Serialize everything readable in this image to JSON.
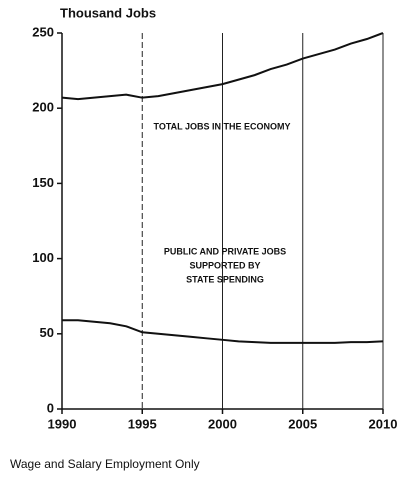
{
  "chart_data": {
    "type": "line",
    "y_label": "Thousand Jobs",
    "footnote": "Wage and Salary Employment Only",
    "x": [
      1990,
      1991,
      1992,
      1993,
      1994,
      1995,
      1996,
      1997,
      1998,
      1999,
      2000,
      2001,
      2002,
      2003,
      2004,
      2005,
      2006,
      2007,
      2008,
      2009,
      2010
    ],
    "series": [
      {
        "color": "#111111",
        "values": [
          207,
          206,
          207,
          208,
          209,
          207,
          208,
          210,
          212,
          214,
          216,
          219,
          222,
          226,
          229,
          233,
          236,
          239,
          243,
          246,
          250
        ]
      },
      {
        "color": "#111111",
        "values": [
          59,
          59,
          58,
          57,
          55,
          51,
          50,
          49,
          48,
          47,
          46,
          45,
          44.5,
          44,
          44,
          44,
          44,
          44,
          44.5,
          44.5,
          45
        ]
      }
    ],
    "annotations": [
      [
        "TOTAL JOBS IN THE ECONOMY"
      ],
      [
        "PUBLIC AND PRIVATE JOBS",
        "SUPPORTED BY",
        "STATE SPENDING"
      ]
    ],
    "xlim": [
      1990,
      2010
    ],
    "xticks": [
      1990,
      1995,
      2000,
      2005,
      2010
    ],
    "ylim": [
      0,
      250
    ],
    "yticks": [
      0,
      50,
      100,
      150,
      200,
      250
    ],
    "xgrid": true
  }
}
